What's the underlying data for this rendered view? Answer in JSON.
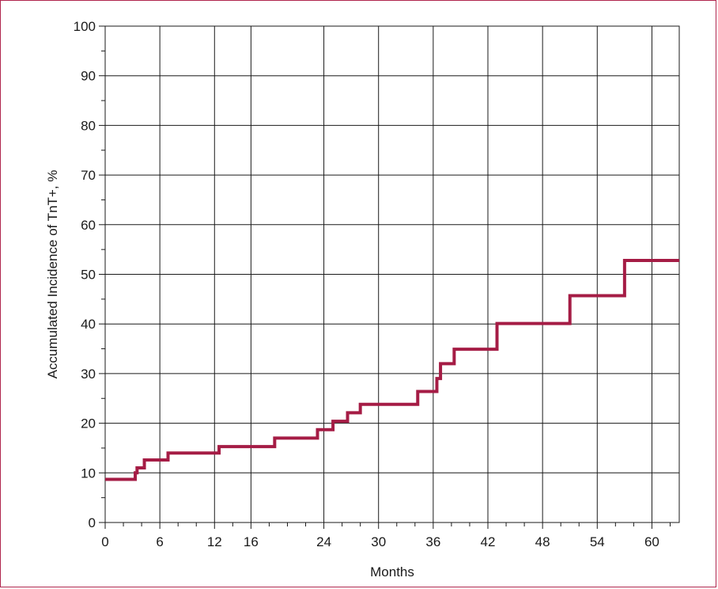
{
  "chart_data": {
    "type": "line",
    "step": true,
    "xlabel": "Months",
    "ylabel": "Accumulated Incidence of TnT+, %",
    "xlim": [
      0,
      63
    ],
    "ylim": [
      0,
      100
    ],
    "x_ticks": [
      0,
      6,
      12,
      16,
      24,
      30,
      36,
      42,
      48,
      54,
      60
    ],
    "x_tick_labels": [
      "0",
      "6",
      "12",
      "16",
      "24",
      "30",
      "36",
      "42",
      "48",
      "54",
      "60"
    ],
    "x_minor_ticks": [
      2,
      4,
      8,
      10,
      14,
      18,
      20,
      22,
      26,
      28,
      32,
      34,
      38,
      40,
      44,
      46,
      50,
      52,
      56,
      58,
      62
    ],
    "y_ticks": [
      0,
      10,
      20,
      30,
      40,
      50,
      60,
      70,
      80,
      90,
      100
    ],
    "y_minor_ticks": [
      5,
      15,
      25,
      35,
      45,
      55,
      65,
      75,
      85,
      95
    ],
    "grid": true,
    "line_color": "#a51c45",
    "series": [
      {
        "x": [
          0,
          3.3,
          3.5,
          4.3,
          6.9,
          12.5,
          18.6,
          23.3,
          25.0,
          26.6,
          28.0,
          34.3,
          36.4,
          36.8,
          38.3,
          43.0,
          51.0,
          57.0,
          63.0
        ],
        "y": [
          8.7,
          10.0,
          11.0,
          12.6,
          14.0,
          15.3,
          17.0,
          18.7,
          20.4,
          22.1,
          23.8,
          26.4,
          29.0,
          32.0,
          34.9,
          40.1,
          45.7,
          52.8,
          52.8
        ]
      }
    ]
  }
}
